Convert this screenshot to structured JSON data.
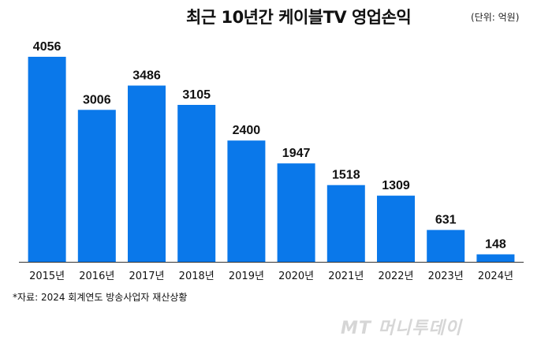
{
  "chart_data": {
    "type": "bar",
    "title": "최근 10년간 케이블TV 영업손익",
    "unit": "(단위: 억원)",
    "categories": [
      "2015년",
      "2016년",
      "2017년",
      "2018년",
      "2019년",
      "2020년",
      "2021년",
      "2022년",
      "2023년",
      "2024년"
    ],
    "values": [
      4056,
      3006,
      3486,
      3105,
      2400,
      1947,
      1518,
      1309,
      631,
      148
    ],
    "data_labels": [
      "4056",
      "3006",
      "3486",
      "3105",
      "2400",
      "1947",
      "1518",
      "1309",
      "631",
      "148"
    ],
    "xlabel": "",
    "ylabel": "",
    "ylim": [
      0,
      4056
    ],
    "grid": false,
    "legend": "none",
    "bar_color": "#0a78ea"
  },
  "source_note": "*자료: 2024 회계연도 방송사업자 재산상황",
  "watermark": "MT 머니투데이"
}
